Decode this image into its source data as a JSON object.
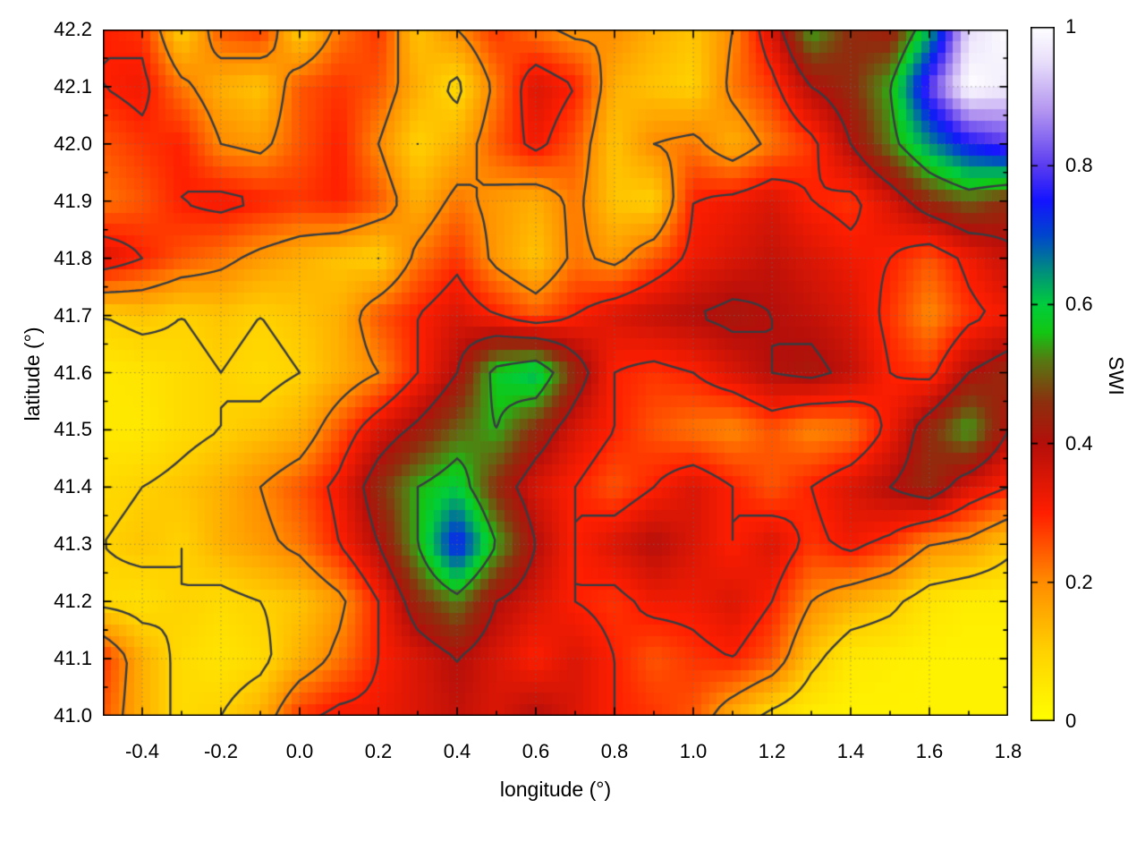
{
  "chart_data": {
    "type": "heatmap",
    "title": "",
    "xlabel": "longitude (°)",
    "ylabel": "latitude (°)",
    "colorbar_label": "SWI",
    "xlim": [
      -0.5,
      1.8
    ],
    "ylim": [
      41.0,
      42.2
    ],
    "clim": [
      0,
      1
    ],
    "grid_on": true,
    "x_ticks": {
      "values": [
        -0.4,
        -0.2,
        0.0,
        0.2,
        0.4,
        0.6,
        0.8,
        1.0,
        1.2,
        1.4,
        1.6,
        1.8
      ],
      "labels": [
        "-0.4",
        "-0.2",
        "0.0",
        "0.2",
        "0.4",
        "0.6",
        "0.8",
        "1.0",
        "1.2",
        "1.4",
        "1.6",
        "1.8"
      ],
      "minor_step": 0.1
    },
    "y_ticks": {
      "values": [
        41.0,
        41.1,
        41.2,
        41.3,
        41.4,
        41.5,
        41.6,
        41.7,
        41.8,
        41.9,
        42.0,
        42.1,
        42.2
      ],
      "labels": [
        "41.0",
        "41.1",
        "41.2",
        "41.3",
        "41.4",
        "41.5",
        "41.6",
        "41.7",
        "41.8",
        "41.9",
        "42.0",
        "42.1",
        "42.2"
      ],
      "minor_step": 0.05
    },
    "colorbar_ticks": {
      "values": [
        0,
        0.2,
        0.4,
        0.6,
        0.8,
        1
      ],
      "labels": [
        "0",
        "0.2",
        "0.4",
        "0.6",
        "0.8",
        "1"
      ]
    },
    "palette": [
      [
        0.0,
        "#ffff00"
      ],
      [
        0.1,
        "#ffd200"
      ],
      [
        0.2,
        "#ff8c00"
      ],
      [
        0.3,
        "#ff1e00"
      ],
      [
        0.4,
        "#b40f0a"
      ],
      [
        0.46,
        "#8c300e"
      ],
      [
        0.52,
        "#567a12"
      ],
      [
        0.56,
        "#13c613"
      ],
      [
        0.6,
        "#00cd3c"
      ],
      [
        0.65,
        "#008c80"
      ],
      [
        0.7,
        "#0046cd"
      ],
      [
        0.75,
        "#1414ff"
      ],
      [
        0.8,
        "#5a3cf0"
      ],
      [
        0.88,
        "#b496f0"
      ],
      [
        0.95,
        "#e8defa"
      ],
      [
        1.0,
        "#ffffff"
      ]
    ],
    "grid": {
      "lons": [
        -0.5,
        -0.4,
        -0.3,
        -0.2,
        -0.1,
        0.0,
        0.1,
        0.2,
        0.3,
        0.4,
        0.5,
        0.6,
        0.7,
        0.8,
        0.9,
        1.0,
        1.1,
        1.2,
        1.3,
        1.4,
        1.5,
        1.6,
        1.7,
        1.8
      ],
      "lats": [
        42.2,
        42.1,
        42.0,
        41.9,
        41.8,
        41.7,
        41.6,
        41.5,
        41.4,
        41.3,
        41.2,
        41.1,
        41.0
      ],
      "values": [
        [
          0.3,
          0.28,
          0.1,
          0.25,
          0.28,
          0.1,
          0.22,
          0.28,
          0.12,
          0.2,
          0.28,
          0.22,
          0.18,
          0.2,
          0.15,
          0.12,
          0.2,
          0.35,
          0.55,
          0.45,
          0.42,
          0.62,
          0.95,
          1.0
        ],
        [
          0.3,
          0.32,
          0.22,
          0.15,
          0.12,
          0.25,
          0.28,
          0.25,
          0.15,
          0.08,
          0.22,
          0.35,
          0.3,
          0.15,
          0.12,
          0.1,
          0.22,
          0.28,
          0.4,
          0.45,
          0.55,
          0.8,
          1.0,
          0.97
        ],
        [
          0.25,
          0.28,
          0.3,
          0.2,
          0.18,
          0.25,
          0.3,
          0.2,
          0.1,
          0.15,
          0.25,
          0.32,
          0.25,
          0.12,
          0.2,
          0.22,
          0.15,
          0.22,
          0.28,
          0.4,
          0.52,
          0.65,
          0.75,
          0.8
        ],
        [
          0.22,
          0.25,
          0.3,
          0.32,
          0.3,
          0.28,
          0.3,
          0.25,
          0.15,
          0.22,
          0.18,
          0.15,
          0.22,
          0.12,
          0.1,
          0.3,
          0.32,
          0.35,
          0.3,
          0.28,
          0.35,
          0.45,
          0.5,
          0.45
        ],
        [
          0.35,
          0.3,
          0.25,
          0.22,
          0.18,
          0.15,
          0.12,
          0.1,
          0.22,
          0.28,
          0.18,
          0.12,
          0.22,
          0.18,
          0.25,
          0.32,
          0.35,
          0.38,
          0.35,
          0.32,
          0.3,
          0.25,
          0.32,
          0.38
        ],
        [
          0.1,
          0.12,
          0.1,
          0.12,
          0.1,
          0.12,
          0.15,
          0.25,
          0.3,
          0.35,
          0.3,
          0.25,
          0.3,
          0.35,
          0.38,
          0.4,
          0.42,
          0.4,
          0.38,
          0.35,
          0.28,
          0.2,
          0.28,
          0.32
        ],
        [
          0.05,
          0.06,
          0.08,
          0.1,
          0.08,
          0.1,
          0.15,
          0.2,
          0.3,
          0.4,
          0.58,
          0.63,
          0.45,
          0.3,
          0.28,
          0.3,
          0.35,
          0.4,
          0.42,
          0.38,
          0.3,
          0.28,
          0.4,
          0.45
        ],
        [
          0.05,
          0.05,
          0.08,
          0.1,
          0.12,
          0.15,
          0.25,
          0.35,
          0.42,
          0.5,
          0.55,
          0.45,
          0.35,
          0.3,
          0.25,
          0.22,
          0.2,
          0.25,
          0.2,
          0.22,
          0.32,
          0.45,
          0.55,
          0.4
        ],
        [
          0.08,
          0.1,
          0.12,
          0.15,
          0.2,
          0.25,
          0.32,
          0.45,
          0.55,
          0.6,
          0.45,
          0.35,
          0.3,
          0.25,
          0.3,
          0.35,
          0.3,
          0.25,
          0.3,
          0.35,
          0.4,
          0.45,
          0.35,
          0.3
        ],
        [
          0.1,
          0.12,
          0.1,
          0.15,
          0.18,
          0.22,
          0.3,
          0.4,
          0.55,
          0.75,
          0.55,
          0.4,
          0.3,
          0.35,
          0.4,
          0.35,
          0.3,
          0.35,
          0.28,
          0.32,
          0.28,
          0.2,
          0.18,
          0.12
        ],
        [
          0.08,
          0.07,
          0.1,
          0.08,
          0.1,
          0.12,
          0.18,
          0.3,
          0.45,
          0.52,
          0.4,
          0.35,
          0.3,
          0.28,
          0.32,
          0.32,
          0.35,
          0.3,
          0.2,
          0.15,
          0.12,
          0.06,
          0.04,
          0.04
        ],
        [
          0.28,
          0.15,
          0.08,
          0.06,
          0.08,
          0.15,
          0.22,
          0.3,
          0.35,
          0.4,
          0.35,
          0.3,
          0.35,
          0.3,
          0.25,
          0.28,
          0.3,
          0.25,
          0.12,
          0.05,
          0.04,
          0.03,
          0.03,
          0.03
        ],
        [
          0.25,
          0.15,
          0.08,
          0.1,
          0.15,
          0.28,
          0.32,
          0.32,
          0.35,
          0.38,
          0.35,
          0.4,
          0.35,
          0.3,
          0.28,
          0.25,
          0.15,
          0.08,
          0.04,
          0.03,
          0.03,
          0.03,
          0.03,
          0.03
        ]
      ]
    },
    "contour_levels": [
      0.1,
      0.2,
      0.3,
      0.4,
      0.55
    ],
    "styles": {
      "contour_color": "#383c42",
      "grid_dot_color": "rgba(110,110,110,0.65)",
      "axis_color": "#000000"
    }
  }
}
